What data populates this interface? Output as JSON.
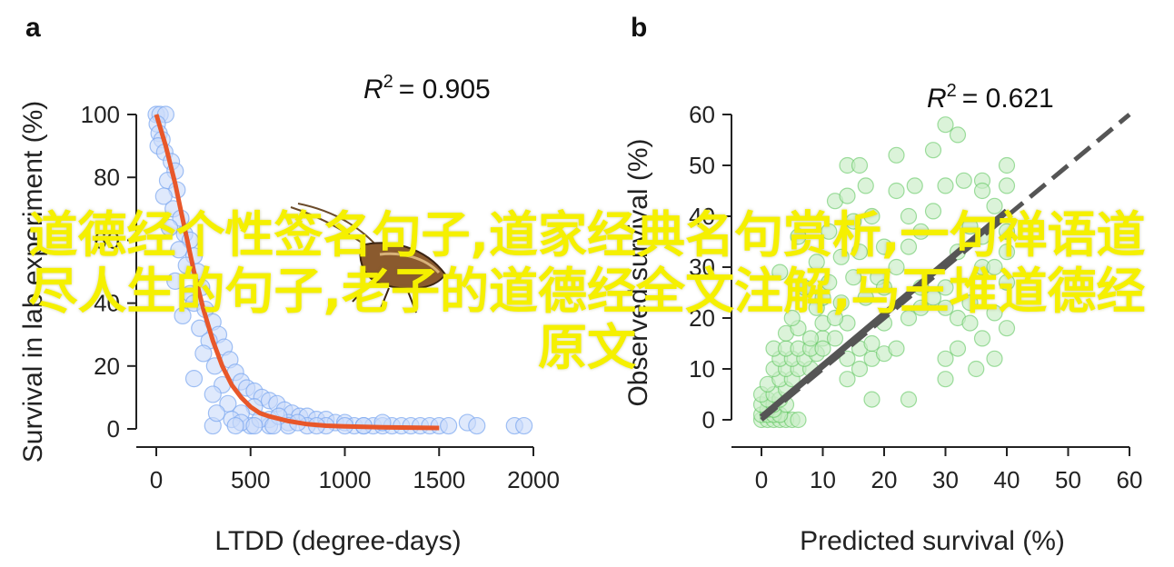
{
  "overlay_text": "道德经个性签名句子,道家经典名句赏析,一句禅语道尽人生的句子,老子的道德经全文注解,马王堆道德经原文",
  "colors": {
    "panel_a_point": "#7aa7f0",
    "panel_a_point_fill": "#c9dbfa",
    "panel_a_curve": "#e8572a",
    "panel_b_point": "#55c255",
    "panel_b_point_fill": "#c7ecc5",
    "panel_b_fit": "#555555",
    "overlay": "#f5f000"
  },
  "chart_data": [
    {
      "panel_label": "a",
      "type": "scatter",
      "annotation": {
        "r2_symbol": "R",
        "r2_sup": "2",
        "r2_value": "= 0.905"
      },
      "xlabel": "LTDD (degree-days)",
      "ylabel": "Survival in lab experiment (%)",
      "xlim": [
        -80,
        2000
      ],
      "ylim": [
        -5,
        102
      ],
      "xticks": [
        0,
        500,
        1000,
        1500,
        2000
      ],
      "yticks": [
        0,
        20,
        40,
        60,
        80,
        100
      ],
      "grid": false,
      "series": [
        {
          "kind": "points",
          "points": [
            [
              0,
              100
            ],
            [
              20,
              100
            ],
            [
              50,
              100
            ],
            [
              5,
              97
            ],
            [
              15,
              94
            ],
            [
              30,
              92
            ],
            [
              10,
              90
            ],
            [
              45,
              88
            ],
            [
              80,
              85
            ],
            [
              100,
              82
            ],
            [
              60,
              79
            ],
            [
              110,
              76
            ],
            [
              40,
              74
            ],
            [
              90,
              70
            ],
            [
              130,
              67
            ],
            [
              70,
              64
            ],
            [
              150,
              62
            ],
            [
              180,
              60
            ],
            [
              120,
              57
            ],
            [
              200,
              55
            ],
            [
              160,
              52
            ],
            [
              220,
              50
            ],
            [
              100,
              47
            ],
            [
              240,
              45
            ],
            [
              180,
              43
            ],
            [
              200,
              40
            ],
            [
              260,
              38
            ],
            [
              140,
              36
            ],
            [
              300,
              34
            ],
            [
              230,
              32
            ],
            [
              330,
              30
            ],
            [
              280,
              28
            ],
            [
              360,
              26
            ],
            [
              250,
              24
            ],
            [
              390,
              22
            ],
            [
              310,
              20
            ],
            [
              420,
              18
            ],
            [
              200,
              16
            ],
            [
              450,
              15
            ],
            [
              350,
              14
            ],
            [
              480,
              13
            ],
            [
              520,
              12
            ],
            [
              300,
              11
            ],
            [
              560,
              10
            ],
            [
              600,
              9
            ],
            [
              380,
              8
            ],
            [
              640,
              8
            ],
            [
              520,
              7
            ],
            [
              680,
              6
            ],
            [
              720,
              5
            ],
            [
              450,
              5
            ],
            [
              760,
              4
            ],
            [
              800,
              4
            ],
            [
              600,
              3
            ],
            [
              850,
              3
            ],
            [
              900,
              3
            ],
            [
              700,
              2
            ],
            [
              950,
              2
            ],
            [
              1000,
              2
            ],
            [
              1050,
              1
            ],
            [
              1100,
              1
            ],
            [
              1150,
              1
            ],
            [
              1200,
              1
            ],
            [
              1250,
              1
            ],
            [
              1300,
              1
            ],
            [
              1350,
              1
            ],
            [
              1400,
              1
            ],
            [
              1450,
              1
            ],
            [
              1500,
              1
            ],
            [
              1550,
              1
            ],
            [
              1650,
              2
            ],
            [
              1700,
              1
            ],
            [
              1900,
              1
            ],
            [
              1950,
              1
            ],
            [
              400,
              3
            ],
            [
              500,
              1
            ],
            [
              600,
              1
            ],
            [
              700,
              1
            ],
            [
              800,
              1
            ],
            [
              900,
              1
            ],
            [
              1000,
              1
            ],
            [
              1100,
              1
            ],
            [
              1200,
              2
            ],
            [
              300,
              1
            ],
            [
              450,
              2
            ],
            [
              550,
              3
            ],
            [
              650,
              4
            ],
            [
              750,
              2
            ],
            [
              850,
              1
            ],
            [
              320,
              5
            ],
            [
              420,
              1
            ],
            [
              520,
              1
            ],
            [
              620,
              1
            ]
          ]
        },
        {
          "kind": "fit_curve",
          "curve": [
            [
              0,
              100
            ],
            [
              25,
              95
            ],
            [
              50,
              90
            ],
            [
              75,
              84
            ],
            [
              100,
              78
            ],
            [
              125,
              71
            ],
            [
              150,
              64
            ],
            [
              175,
              57
            ],
            [
              200,
              50
            ],
            [
              250,
              38
            ],
            [
              300,
              28
            ],
            [
              350,
              20
            ],
            [
              400,
              14
            ],
            [
              450,
              10
            ],
            [
              500,
              7
            ],
            [
              550,
              5
            ],
            [
              600,
              4
            ],
            [
              700,
              2.5
            ],
            [
              800,
              1.5
            ],
            [
              900,
              1
            ],
            [
              1000,
              0.8
            ],
            [
              1200,
              0.5
            ],
            [
              1500,
              0.3
            ]
          ]
        }
      ]
    },
    {
      "panel_label": "b",
      "type": "scatter",
      "annotation": {
        "r2_symbol": "R",
        "r2_sup": "2",
        "r2_value": "= 0.621"
      },
      "xlabel": "Predicted survival (%)",
      "ylabel": "Observed survival (%)",
      "xlim": [
        -5,
        60
      ],
      "ylim": [
        -5,
        60
      ],
      "xticks": [
        0,
        10,
        20,
        30,
        40,
        50,
        60
      ],
      "yticks": [
        0,
        10,
        20,
        30,
        40,
        50,
        60
      ],
      "grid": false,
      "one_to_one_line": [
        [
          0,
          0
        ],
        [
          60,
          60
        ]
      ],
      "fit_line": [
        [
          0,
          0.5
        ],
        [
          40,
          41
        ]
      ],
      "series": [
        {
          "kind": "points",
          "points": [
            [
              0,
              0
            ],
            [
              1,
              0
            ],
            [
              2,
              0
            ],
            [
              3,
              0
            ],
            [
              4,
              0
            ],
            [
              5,
              0
            ],
            [
              6,
              0
            ],
            [
              0,
              1
            ],
            [
              1,
              1
            ],
            [
              2,
              1
            ],
            [
              3,
              1
            ],
            [
              1,
              2
            ],
            [
              2,
              2
            ],
            [
              0,
              3
            ],
            [
              2,
              3
            ],
            [
              4,
              3
            ],
            [
              1,
              4
            ],
            [
              3,
              4
            ],
            [
              0,
              5
            ],
            [
              2,
              5
            ],
            [
              4,
              6
            ],
            [
              1,
              7
            ],
            [
              3,
              8
            ],
            [
              5,
              8
            ],
            [
              2,
              10
            ],
            [
              4,
              10
            ],
            [
              6,
              10
            ],
            [
              8,
              10
            ],
            [
              3,
              12
            ],
            [
              5,
              12
            ],
            [
              7,
              12
            ],
            [
              9,
              13
            ],
            [
              2,
              14
            ],
            [
              4,
              14
            ],
            [
              6,
              14
            ],
            [
              8,
              14
            ],
            [
              10,
              16
            ],
            [
              12,
              16
            ],
            [
              4,
              17
            ],
            [
              6,
              18
            ],
            [
              10,
              19
            ],
            [
              14,
              19
            ],
            [
              5,
              20
            ],
            [
              9,
              22
            ],
            [
              13,
              23
            ],
            [
              17,
              24
            ],
            [
              7,
              26
            ],
            [
              11,
              27
            ],
            [
              15,
              28
            ],
            [
              19,
              28
            ],
            [
              3,
              29
            ],
            [
              9,
              31
            ],
            [
              13,
              32
            ],
            [
              16,
              33
            ],
            [
              20,
              34
            ],
            [
              6,
              36
            ],
            [
              11,
              37
            ],
            [
              15,
              39
            ],
            [
              18,
              40
            ],
            [
              24,
              40
            ],
            [
              12,
              43
            ],
            [
              14,
              44
            ],
            [
              22,
              45
            ],
            [
              17,
              46
            ],
            [
              25,
              46
            ],
            [
              30,
              46
            ],
            [
              33,
              47
            ],
            [
              36,
              47
            ],
            [
              40,
              46
            ],
            [
              14,
              50
            ],
            [
              16,
              50
            ],
            [
              22,
              52
            ],
            [
              28,
              53
            ],
            [
              32,
              56
            ],
            [
              30,
              58
            ],
            [
              40,
              50
            ],
            [
              36,
              45
            ],
            [
              38,
              42
            ],
            [
              40,
              37
            ],
            [
              34,
              38
            ],
            [
              32,
              33
            ],
            [
              36,
              30
            ],
            [
              40,
              27
            ],
            [
              30,
              26
            ],
            [
              34,
              23
            ],
            [
              38,
              21
            ],
            [
              40,
              18
            ],
            [
              36,
              16
            ],
            [
              32,
              14
            ],
            [
              30,
              12
            ],
            [
              35,
              10
            ],
            [
              30,
              8
            ],
            [
              38,
              12
            ],
            [
              24,
              4
            ],
            [
              18,
              4
            ],
            [
              14,
              8
            ],
            [
              16,
              10
            ],
            [
              18,
              12
            ],
            [
              14,
              12
            ],
            [
              16,
              14
            ],
            [
              18,
              15
            ],
            [
              20,
              13
            ],
            [
              22,
              14
            ],
            [
              20,
              19
            ],
            [
              24,
              20
            ],
            [
              26,
              22
            ],
            [
              28,
              24
            ],
            [
              30,
              22
            ],
            [
              32,
              20
            ],
            [
              34,
              19
            ],
            [
              26,
              26
            ],
            [
              38,
              30
            ],
            [
              40,
              33
            ],
            [
              36,
              36
            ],
            [
              10,
              14
            ],
            [
              8,
              16
            ],
            [
              12,
              20
            ],
            [
              10,
              24
            ],
            [
              20,
              26
            ],
            [
              22,
              30
            ],
            [
              24,
              34
            ],
            [
              26,
              37
            ],
            [
              28,
              41
            ]
          ]
        }
      ]
    }
  ]
}
